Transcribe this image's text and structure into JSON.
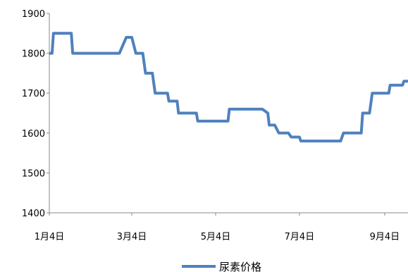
{
  "chart_data": {
    "type": "line",
    "title": "",
    "xlabel": "",
    "ylabel": "",
    "ylim": [
      1400,
      1900
    ],
    "yticks": [
      1400,
      1500,
      1600,
      1700,
      1800,
      1900
    ],
    "ytick_labels": [
      "1400",
      "1500",
      "1600",
      "1700",
      "1800",
      "1900"
    ],
    "xlim": [
      "2012-01-04",
      "2012-09-21"
    ],
    "xticks": [
      "2012-01-04",
      "2012-03-04",
      "2012-05-04",
      "2012-07-04",
      "2012-09-04"
    ],
    "xtick_labels": [
      "1月4日",
      "3月4日",
      "5月4日",
      "7月4日",
      "9月4日"
    ],
    "grid": false,
    "legend_position": "bottom",
    "series": [
      {
        "name": "尿素价格",
        "color": "#4f81bd",
        "points": [
          [
            "2012-01-04",
            1800
          ],
          [
            "2012-01-06",
            1800
          ],
          [
            "2012-01-07",
            1850
          ],
          [
            "2012-01-20",
            1850
          ],
          [
            "2012-01-21",
            1800
          ],
          [
            "2012-02-24",
            1800
          ],
          [
            "2012-02-29",
            1840
          ],
          [
            "2012-03-04",
            1840
          ],
          [
            "2012-03-07",
            1800
          ],
          [
            "2012-03-12",
            1800
          ],
          [
            "2012-03-14",
            1750
          ],
          [
            "2012-03-19",
            1750
          ],
          [
            "2012-03-21",
            1700
          ],
          [
            "2012-03-30",
            1700
          ],
          [
            "2012-03-31",
            1680
          ],
          [
            "2012-04-06",
            1680
          ],
          [
            "2012-04-07",
            1650
          ],
          [
            "2012-04-20",
            1650
          ],
          [
            "2012-04-21",
            1630
          ],
          [
            "2012-05-13",
            1630
          ],
          [
            "2012-05-14",
            1660
          ],
          [
            "2012-06-07",
            1660
          ],
          [
            "2012-06-11",
            1650
          ],
          [
            "2012-06-12",
            1620
          ],
          [
            "2012-06-16",
            1620
          ],
          [
            "2012-06-19",
            1600
          ],
          [
            "2012-06-26",
            1600
          ],
          [
            "2012-06-28",
            1590
          ],
          [
            "2012-07-04",
            1590
          ],
          [
            "2012-07-05",
            1580
          ],
          [
            "2012-08-03",
            1580
          ],
          [
            "2012-08-05",
            1600
          ],
          [
            "2012-08-18",
            1600
          ],
          [
            "2012-08-19",
            1650
          ],
          [
            "2012-08-24",
            1650
          ],
          [
            "2012-08-26",
            1700
          ],
          [
            "2012-09-07",
            1700
          ],
          [
            "2012-09-08",
            1720
          ],
          [
            "2012-09-17",
            1720
          ],
          [
            "2012-09-18",
            1730
          ],
          [
            "2012-09-21",
            1730
          ]
        ]
      }
    ]
  }
}
